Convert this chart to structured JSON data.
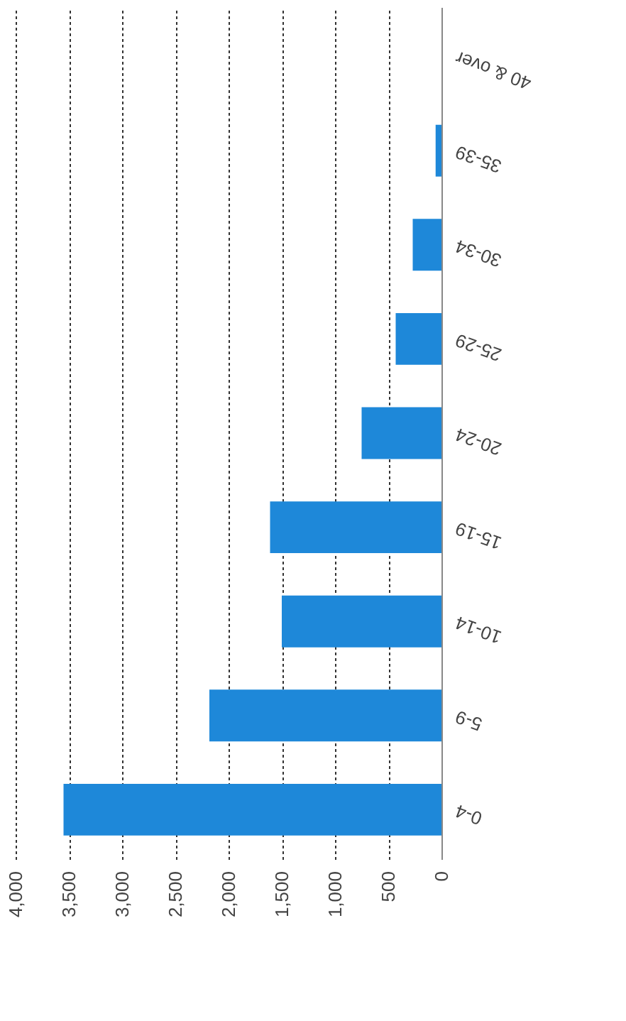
{
  "chart_data": {
    "type": "bar",
    "orientation": "horizontal",
    "categories": [
      "40 & over",
      "35-39",
      "30-34",
      "25-29",
      "20-24",
      "15-19",
      "10-14",
      "5-9",
      "0-4"
    ],
    "values": [
      0,
      55,
      270,
      430,
      750,
      1610,
      1500,
      2180,
      3550
    ],
    "color": "#1e88d9",
    "xlim": [
      4000,
      0
    ],
    "xticks": [
      {
        "value": 4000,
        "label": "4,000"
      },
      {
        "value": 3500,
        "label": "3,500"
      },
      {
        "value": 3000,
        "label": "3,000"
      },
      {
        "value": 2500,
        "label": "2,500"
      },
      {
        "value": 2000,
        "label": "2,000"
      },
      {
        "value": 1500,
        "label": "1,500"
      },
      {
        "value": 1000,
        "label": "1,000"
      },
      {
        "value": 500,
        "label": "500"
      },
      0
    ],
    "grid": "x"
  }
}
